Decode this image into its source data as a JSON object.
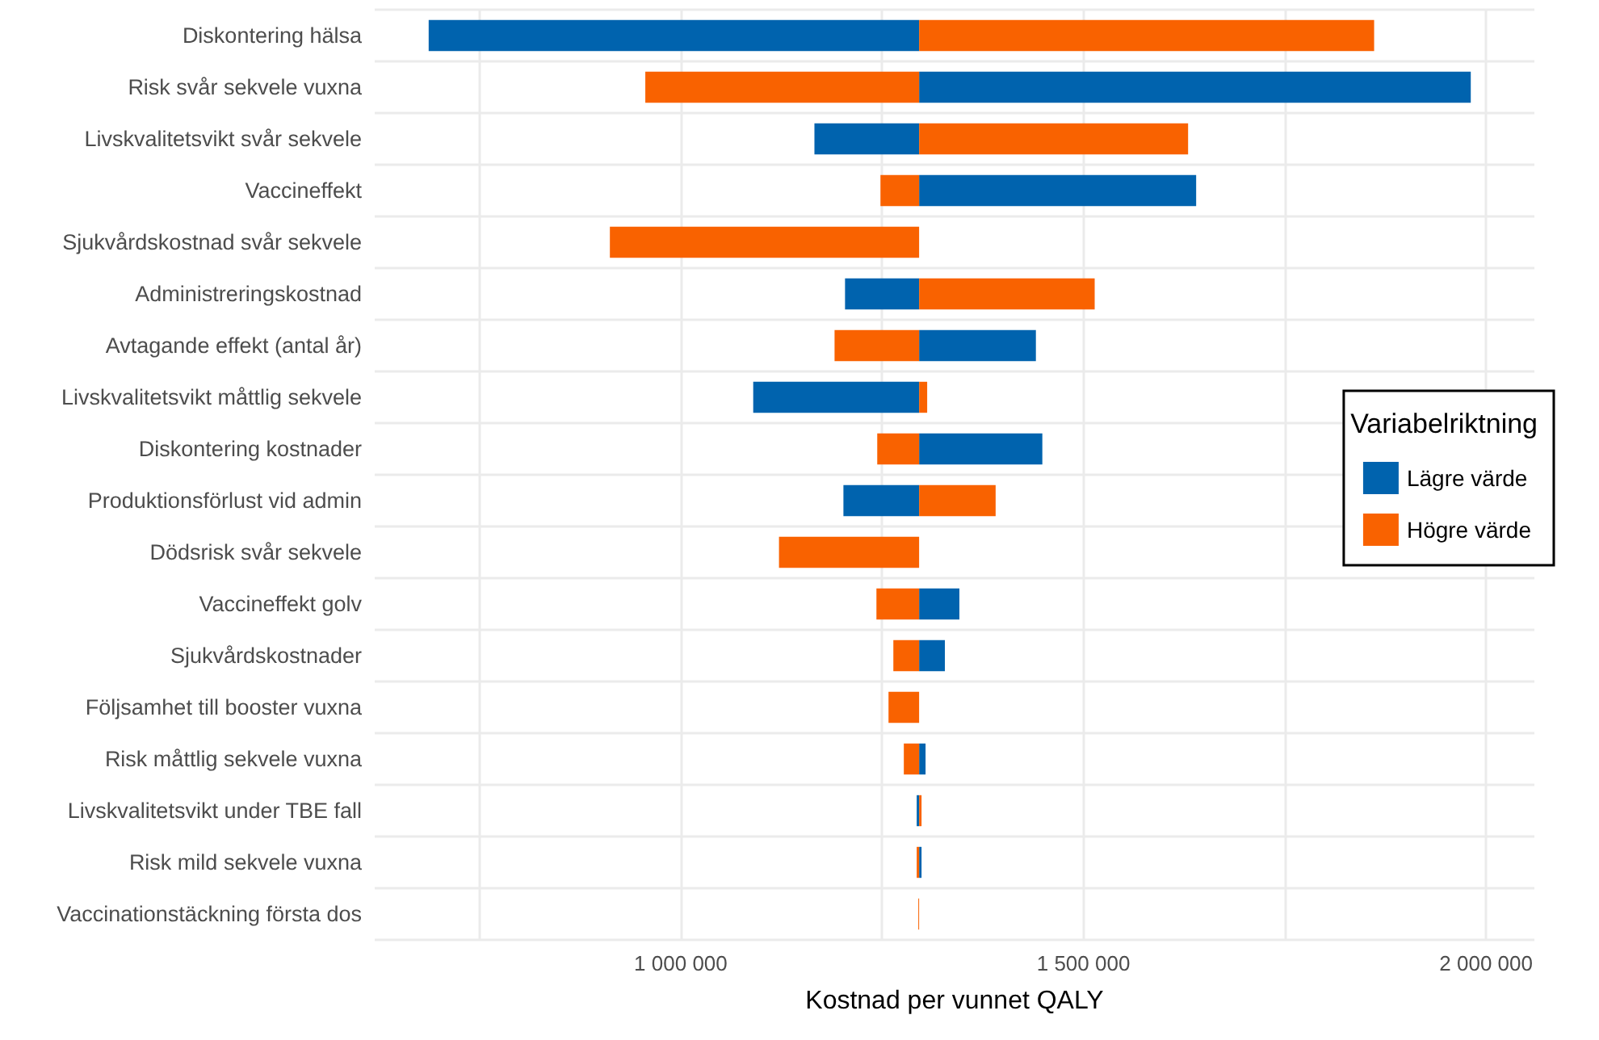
{
  "chart_data": {
    "type": "bar",
    "orientation": "horizontal",
    "xlabel": "Kostnad per vunnet QALY",
    "legend_title": "Variabelriktning",
    "legend": "right",
    "grid": true,
    "categories": [
      "Diskontering hälsa",
      "Risk svår sekvele vuxna",
      "Livskvalitetsvikt svår sekvele",
      "Vaccineffekt",
      "Sjukvårdskostnad svår sekvele",
      "Administreringskostnad",
      "Avtagande effekt (antal år)",
      "Livskvalitetsvikt måttlig sekvele",
      "Diskontering kostnader",
      "Produktionsförlust vid admin",
      "Dödsrisk svår sekvele",
      "Vaccineffekt golv",
      "Sjukvårdskostnader",
      "Följsamhet till booster vuxna",
      "Risk måttlig sekvele vuxna",
      "Livskvalitetsvikt under TBE fall",
      "Risk mild sekvele vuxna",
      "Vaccinationstäckning första dos"
    ],
    "xlim": [
      620000,
      2060000
    ],
    "xticks": [
      {
        "value": 750000,
        "label": null
      },
      {
        "value": 1000000,
        "label": "1 000 000"
      },
      {
        "value": 1250000,
        "label": null
      },
      {
        "value": 1500000,
        "label": "1 500 000"
      },
      {
        "value": 1750000,
        "label": null
      },
      {
        "value": 2000000,
        "label": "2 000 000"
      }
    ],
    "series": [
      {
        "name": "Lägre värde",
        "color": "#0063ae",
        "base": [
          1296000,
          1296000,
          1296000,
          1296000,
          null,
          1296000,
          1296000,
          1296000,
          1296000,
          1296000,
          null,
          1296000,
          1296000,
          null,
          1296000,
          1296000,
          1296000,
          null
        ],
        "values": [
          -609000,
          685000,
          -130000,
          344000,
          null,
          -92000,
          145000,
          -206000,
          153000,
          -94000,
          null,
          50000,
          32000,
          null,
          8000,
          -3000,
          3000,
          null
        ]
      },
      {
        "name": "Högre värde",
        "color": "#f96200",
        "base": [
          1296000,
          1296000,
          1296000,
          1296000,
          1296000,
          1296000,
          1296000,
          1296000,
          1296000,
          1296000,
          1296000,
          1296000,
          1296000,
          1296000,
          1296000,
          1296000,
          1296000,
          1296000
        ],
        "values": [
          565000,
          -340000,
          334000,
          -48000,
          -384000,
          218000,
          -105000,
          10000,
          -52000,
          95000,
          -174000,
          -53000,
          -32000,
          -38000,
          -19000,
          3000,
          -3000,
          -1000
        ]
      }
    ]
  }
}
